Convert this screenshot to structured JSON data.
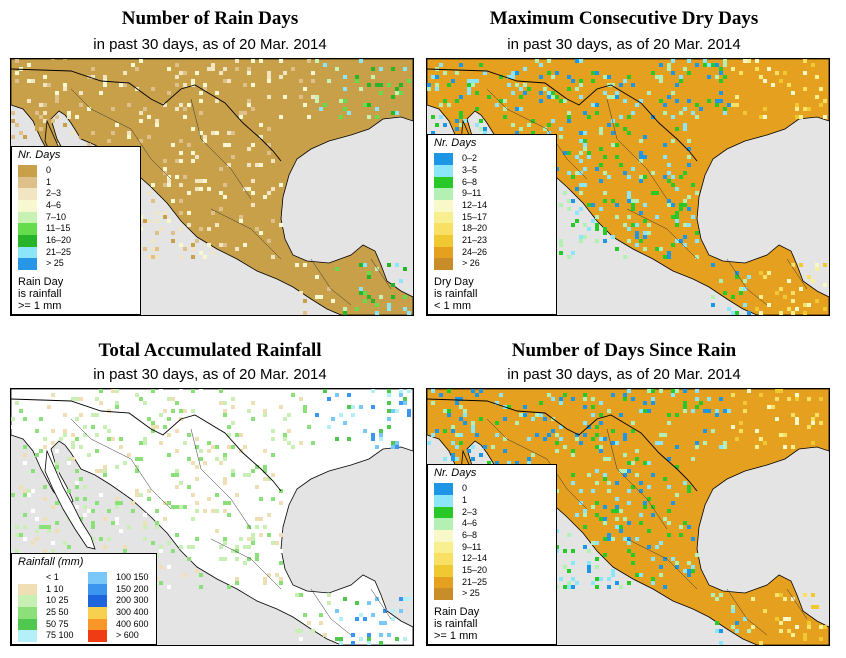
{
  "panels": [
    {
      "title": "Number of Rain Days",
      "subtitle": "in past 30 days, as of  20 Mar. 2014",
      "legend_title": "Nr. Days",
      "legend_items": [
        {
          "label": "0",
          "color": "#c8a04a"
        },
        {
          "label": "1",
          "color": "#ddc08a"
        },
        {
          "label": "2–3",
          "color": "#f2e6c2"
        },
        {
          "label": "4–6",
          "color": "#f8f8d0"
        },
        {
          "label": "7–10",
          "color": "#c8f2b4"
        },
        {
          "label": "11–15",
          "color": "#64dc4c"
        },
        {
          "label": "16–20",
          "color": "#28b428"
        },
        {
          "label": "21–25",
          "color": "#8ce6f8"
        },
        {
          "label": "> 25",
          "color": "#2896e6"
        }
      ],
      "note": [
        "Rain Day",
        "is rainfall",
        ">= 1 mm"
      ],
      "land_base": "#c8a04a"
    },
    {
      "title": "Maximum Consecutive Dry Days",
      "subtitle": "in past 30 days, as of  20 Mar. 2014",
      "legend_title": "Nr. Days",
      "legend_items": [
        {
          "label": "0–2",
          "color": "#1e96e6"
        },
        {
          "label": "3–5",
          "color": "#8ce6f8"
        },
        {
          "label": "6–8",
          "color": "#28c828"
        },
        {
          "label": "9–11",
          "color": "#b4f0b4"
        },
        {
          "label": "12–14",
          "color": "#f8f8c8"
        },
        {
          "label": "15–17",
          "color": "#f8f090"
        },
        {
          "label": "18–20",
          "color": "#f8e064"
        },
        {
          "label": "21–23",
          "color": "#f0c832"
        },
        {
          "label": "24–26",
          "color": "#e6a020"
        },
        {
          "label": "> 26",
          "color": "#c88c28"
        }
      ],
      "note": [
        "Dry Day",
        "is rainfall",
        "< 1 mm"
      ],
      "land_base": "#e6a020"
    },
    {
      "title": "Total Accumulated Rainfall",
      "subtitle": "in past 30 days, as of  20 Mar. 2014",
      "legend_title": "Rainfall (mm)",
      "legend_cols": [
        [
          {
            "label": "< 1",
            "color": "#ffffff"
          },
          {
            "label": "1    10",
            "color": "#f0deb4"
          },
          {
            "label": "10   25",
            "color": "#c8f0b4"
          },
          {
            "label": "25   50",
            "color": "#8ce07a"
          },
          {
            "label": "50   75",
            "color": "#50c850"
          },
          {
            "label": "75  100",
            "color": "#b4f0fa"
          }
        ],
        [
          {
            "label": "100  150",
            "color": "#7ac8f8"
          },
          {
            "label": "150  200",
            "color": "#3c96f0"
          },
          {
            "label": "200  300",
            "color": "#1e64dc"
          },
          {
            "label": "300  400",
            "color": "#f8d050"
          },
          {
            "label": "400  600",
            "color": "#f89628"
          },
          {
            "label": "> 600",
            "color": "#f03c14"
          }
        ]
      ],
      "land_base": "#ffffff"
    },
    {
      "title": "Number of Days Since Rain",
      "subtitle": "in past 30 days, as of  20 Mar. 2014",
      "legend_title": "Nr. Days",
      "legend_items": [
        {
          "label": "0",
          "color": "#1e96e6"
        },
        {
          "label": "1",
          "color": "#8ce6f8"
        },
        {
          "label": "2–3",
          "color": "#28c828"
        },
        {
          "label": "4–6",
          "color": "#b4f0b4"
        },
        {
          "label": "6–8",
          "color": "#f8f8c8"
        },
        {
          "label": "9–11",
          "color": "#f8f090"
        },
        {
          "label": "12–14",
          "color": "#f8e064"
        },
        {
          "label": "15–20",
          "color": "#f0c832"
        },
        {
          "label": "21–25",
          "color": "#e6a020"
        },
        {
          "label": "> 25",
          "color": "#c88c28"
        }
      ],
      "note": [
        "Rain Day",
        "is rainfall",
        ">= 1 mm"
      ],
      "land_base": "#e6a020"
    }
  ]
}
